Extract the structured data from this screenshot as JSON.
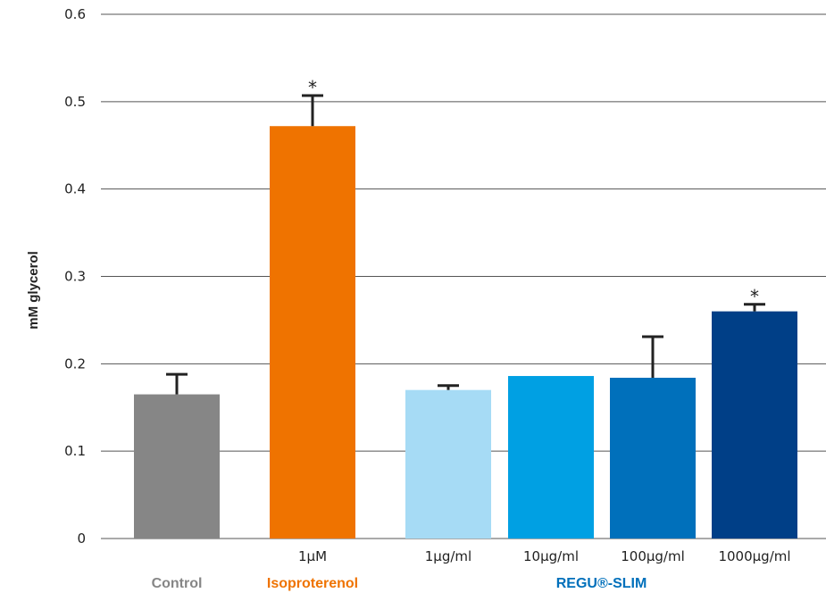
{
  "chart_data": {
    "type": "bar",
    "ylabel": "mM glycerol",
    "ylim": [
      0,
      0.6
    ],
    "yticks": [
      0,
      0.1,
      0.2,
      0.3,
      0.4,
      0.5,
      0.6
    ],
    "ytick_labels": [
      "0",
      "0.1",
      "0.2",
      "0.3",
      "0.4",
      "0.5",
      "0.6"
    ],
    "grid": true,
    "bars": [
      {
        "label": "",
        "value": 0.165,
        "error": 0.023,
        "color": "#868686",
        "significant": false
      },
      {
        "label": "1µM",
        "value": 0.472,
        "error": 0.035,
        "color": "#ef7300",
        "significant": true
      },
      {
        "label": "1µg/ml",
        "value": 0.17,
        "error": 0.005,
        "color": "#a6dbf5",
        "significant": false
      },
      {
        "label": "10µg/ml",
        "value": 0.186,
        "error": 0.0,
        "color": "#00a0e3",
        "significant": false
      },
      {
        "label": "100µg/ml",
        "value": 0.184,
        "error": 0.047,
        "color": "#0070bb",
        "significant": false
      },
      {
        "label": "1000µg/ml",
        "value": 0.26,
        "error": 0.008,
        "color": "#003f87",
        "significant": true
      }
    ],
    "significance_marker": "*",
    "groups": [
      {
        "label": "Control",
        "color": "#868686",
        "bars": [
          0
        ]
      },
      {
        "label": "Isoproterenol",
        "color": "#ef7300",
        "bars": [
          1
        ]
      },
      {
        "label": "REGU®-SLIM",
        "color": "#0070bb",
        "bars": [
          2,
          3,
          4,
          5
        ]
      }
    ]
  }
}
